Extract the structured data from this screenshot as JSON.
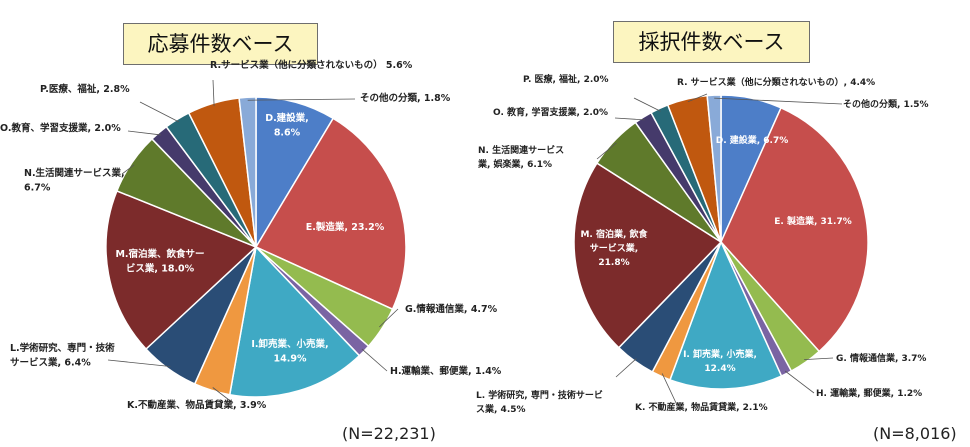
{
  "chart_data": [
    {
      "type": "pie",
      "title": "応募件数ベース",
      "n_label": "(N=22,231)",
      "slices": [
        {
          "label": "D.建設業,",
          "label2": "8.6%",
          "value": 8.6,
          "color": "#4d7ec8"
        },
        {
          "label": "E.製造業, 23.2%",
          "label2": "",
          "value": 23.2,
          "color": "#c64e4c"
        },
        {
          "label": "G.情報通信業, 4.7%",
          "label2": "",
          "value": 4.7,
          "color": "#94bb4f"
        },
        {
          "label": "H.運輸業、郵便業, 1.4%",
          "label2": "",
          "value": 1.4,
          "color": "#7a64a3"
        },
        {
          "label": "I.卸売業、小売業,",
          "label2": "14.9%",
          "value": 14.9,
          "color": "#3fa9c4"
        },
        {
          "label": "K.不動産業、物品賃貸業, 3.9%",
          "label2": "",
          "value": 3.9,
          "color": "#ef9840"
        },
        {
          "label": "L.学術研究、専門・技術",
          "label2": "サービス業, 6.4%",
          "value": 6.4,
          "color": "#2a4d76"
        },
        {
          "label": "M.宿泊業、飲食サー",
          "label2": "ビス業, 18.0%",
          "value": 18.0,
          "color": "#7c2b2b"
        },
        {
          "label": "N.生活関連サービス業,",
          "label2": "6.7%",
          "value": 6.7,
          "color": "#5f7a2b"
        },
        {
          "label": "O.教育、学習支援業, 2.0%",
          "label2": "",
          "value": 2.0,
          "color": "#453a6b"
        },
        {
          "label": "P.医療、福祉, 2.8%",
          "label2": "",
          "value": 2.8,
          "color": "#276a78"
        },
        {
          "label": "R.サービス業（他に分類されないもの） 5.6%",
          "label2": "",
          "value": 5.6,
          "color": "#c0580f"
        },
        {
          "label": "その他の分類, 1.8%",
          "label2": "",
          "value": 1.8,
          "color": "#89aad8"
        }
      ]
    },
    {
      "type": "pie",
      "title": "採択件数ベース",
      "n_label": "(N=8,016)",
      "slices": [
        {
          "label": "D. 建設業, 6.7%",
          "label2": "",
          "value": 6.7,
          "color": "#4d7ec8"
        },
        {
          "label": "E. 製造業, 31.7%",
          "label2": "",
          "value": 31.7,
          "color": "#c64e4c"
        },
        {
          "label": "G. 情報通信業, 3.7%",
          "label2": "",
          "value": 3.7,
          "color": "#94bb4f"
        },
        {
          "label": "H. 運輸業, 郵便業, 1.2%",
          "label2": "",
          "value": 1.2,
          "color": "#7a64a3"
        },
        {
          "label": "I. 卸売業, 小売業,",
          "label2": "12.4%",
          "value": 12.4,
          "color": "#3fa9c4"
        },
        {
          "label": "K. 不動産業, 物品賃貸業, 2.1%",
          "label2": "",
          "value": 2.1,
          "color": "#ef9840"
        },
        {
          "label": "L. 学術研究, 専門・技術サービ",
          "label2": "ス業, 4.5%",
          "value": 4.5,
          "color": "#2a4d76"
        },
        {
          "label": "M. 宿泊業, 飲食",
          "label2": "サービス業,",
          "label3": "21.8%",
          "value": 21.8,
          "color": "#7c2b2b"
        },
        {
          "label": "N. 生活関連サービス",
          "label2": "業, 娯楽業, 6.1%",
          "value": 6.1,
          "color": "#5f7a2b"
        },
        {
          "label": "O. 教育, 学習支援業, 2.0%",
          "label2": "",
          "value": 2.0,
          "color": "#453a6b"
        },
        {
          "label": "P. 医療, 福祉, 2.0%",
          "label2": "",
          "value": 2.0,
          "color": "#276a78"
        },
        {
          "label": "R. サービス業（他に分類されないもの）, 4.4%",
          "label2": "",
          "value": 4.4,
          "color": "#c0580f"
        },
        {
          "label": "その他の分類, 1.5%",
          "label2": "",
          "value": 1.5,
          "color": "#89aad8"
        }
      ]
    }
  ]
}
